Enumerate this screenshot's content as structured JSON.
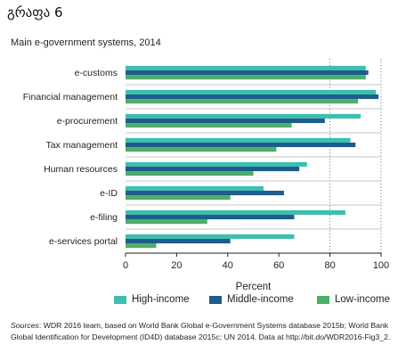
{
  "heading": "გრაფა 6",
  "colors": {
    "high_income": "#3cbfae",
    "middle_income": "#1f5c8b",
    "low_income": "#4caf68"
  },
  "chart_data": {
    "type": "bar",
    "orientation": "horizontal",
    "title": "Main e-government systems, 2014",
    "xlabel": "Percent",
    "ylabel": "",
    "xlim": [
      0,
      100
    ],
    "xticks": [
      0,
      20,
      40,
      60,
      80,
      100
    ],
    "grid": "dotted vertical at 80 and 100",
    "legend_position": "bottom",
    "categories": [
      "e-customs",
      "Financial management",
      "e-procurement",
      "Tax management",
      "Human resources",
      "e-ID",
      "e-filing",
      "e-services portal"
    ],
    "series": [
      {
        "name": "High-income",
        "values": [
          94,
          98,
          92,
          88,
          71,
          54,
          86,
          66
        ]
      },
      {
        "name": "Middle-income",
        "values": [
          95,
          99,
          78,
          90,
          68,
          62,
          66,
          41
        ]
      },
      {
        "name": "Low-income",
        "values": [
          94,
          91,
          65,
          59,
          50,
          41,
          32,
          12
        ]
      }
    ]
  },
  "sources": {
    "label": "Sources",
    "text": ": WDR 2016 team, based on World Bank Global e-Government Systems database 2015b; World Bank Global Identification for Development (ID4D) database 2015c; UN 2014. Data at http://bit.do/WDR2016-Fig3_2."
  }
}
